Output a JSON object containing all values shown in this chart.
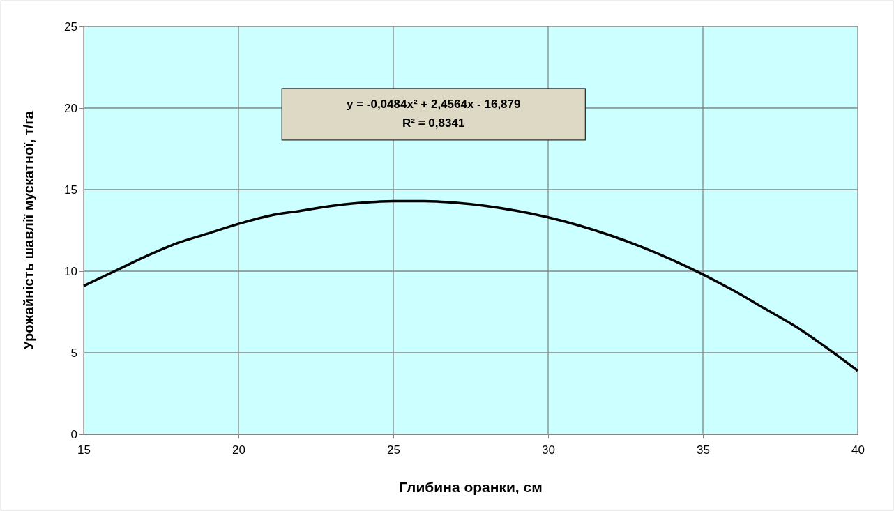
{
  "chart_data": {
    "type": "line",
    "xlabel": "Глибина оранки, см",
    "ylabel": "Урожайність шавлії мускатної, т/га",
    "annotations": [
      "y = -0,0484x² + 2,4564x - 16,879",
      "R² = 0,8341"
    ],
    "x": [
      15,
      16,
      17,
      18,
      19,
      20,
      21,
      22,
      23,
      24,
      25,
      26,
      27,
      28,
      29,
      30,
      31,
      32,
      33,
      34,
      35,
      36,
      37,
      38,
      39,
      40
    ],
    "series": [
      {
        "color": "#000000",
        "values": [
          9.1,
          10.0,
          10.9,
          11.7,
          12.3,
          12.9,
          13.4,
          13.7,
          14.0,
          14.2,
          14.3,
          14.3,
          14.2,
          14.0,
          13.7,
          13.3,
          12.8,
          12.2,
          11.5,
          10.7,
          9.8,
          8.8,
          7.7,
          6.6,
          5.3,
          3.9
        ]
      }
    ],
    "xlim": [
      15,
      40
    ],
    "xticks": [
      15,
      20,
      25,
      30,
      35,
      40
    ],
    "ylim": [
      0,
      25
    ],
    "yticks": [
      0,
      5,
      10,
      15,
      20,
      25
    ],
    "grid": true,
    "marker": "none",
    "line_style": "solid"
  }
}
